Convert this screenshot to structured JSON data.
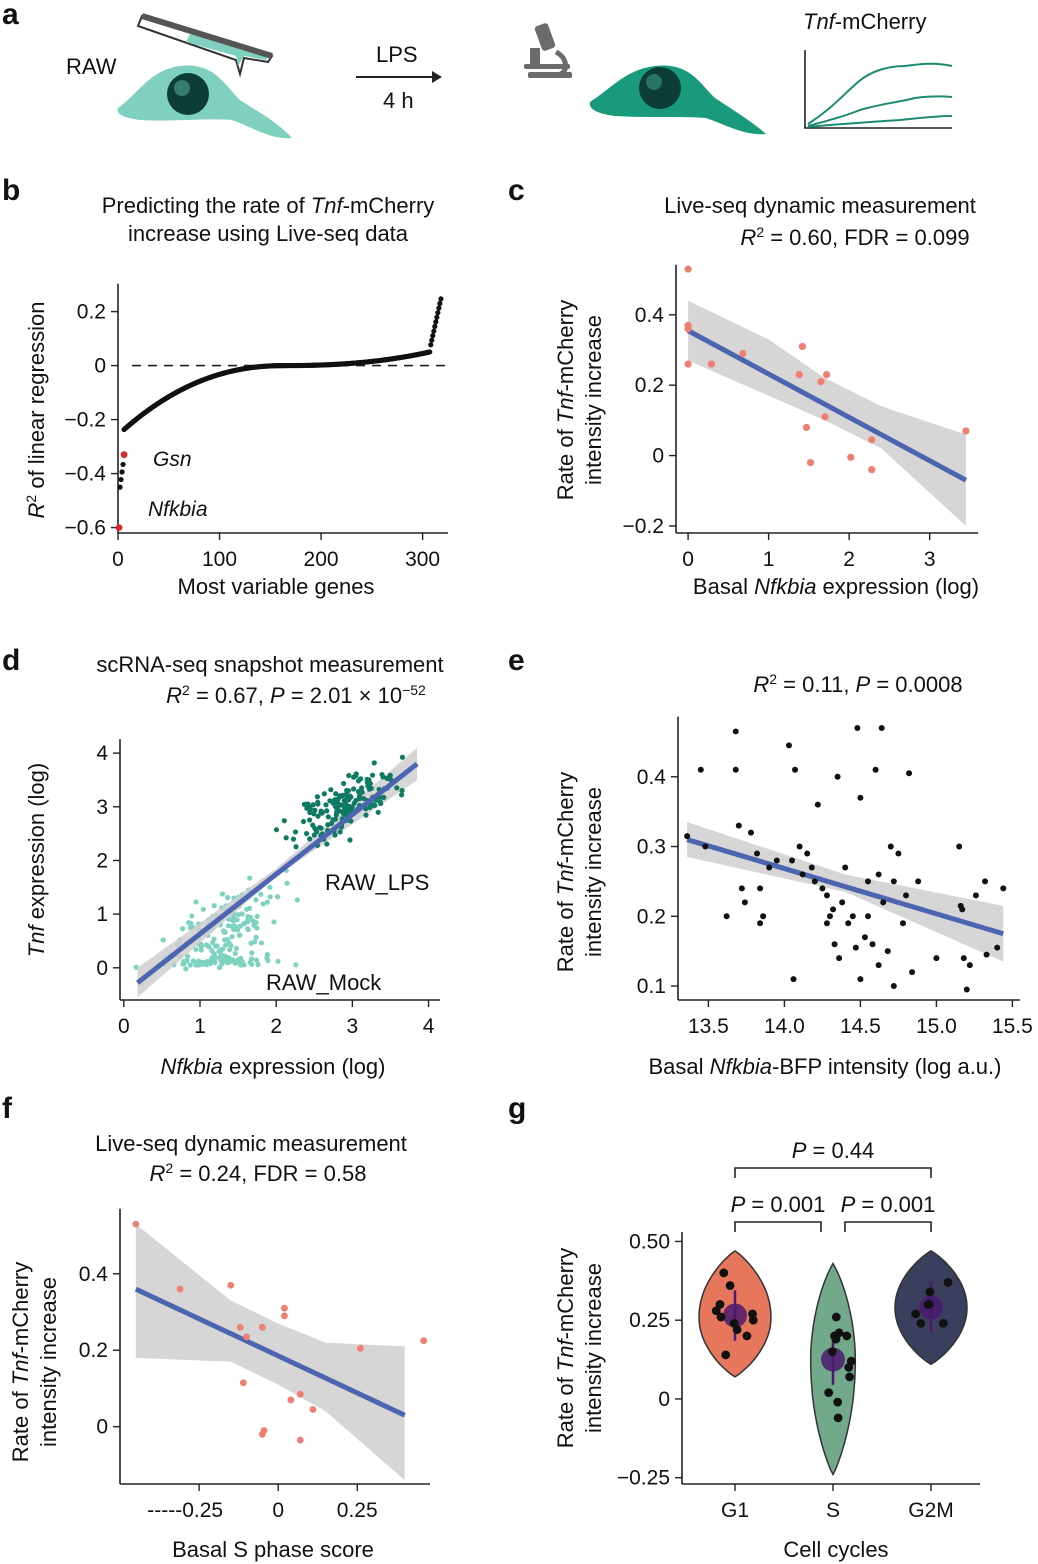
{
  "panel_letters": [
    "a",
    "b",
    "c",
    "d",
    "e",
    "f",
    "g"
  ],
  "schematic": {
    "cell_label": "RAW",
    "treatment": "LPS",
    "duration": "4 h",
    "reporter_label": "Tnf-mCherry",
    "reporter_italic": "Tnf",
    "reporter_rest": "-mCherry",
    "colors": {
      "cell_before": "#7fd0bf",
      "cell_after": "#1a9a7c",
      "trace": "#1d8a72"
    }
  },
  "chart_data": [
    {
      "panel": "b",
      "type": "scatter",
      "title_lines": [
        "Predicting the rate of Tnf-mCherry",
        "increase using Live-seq data"
      ],
      "title_parts": {
        "pre": "Predicting the rate of ",
        "italic": "Tnf",
        "post": "-mCherry",
        "line2": "increase using Live-seq data"
      },
      "xlabel": "Most variable genes",
      "ylabel": "R2 of linear regression",
      "ylabel_parts": {
        "r": "R",
        "sup": "2",
        "rest": " of linear regression"
      },
      "xlim": [
        0,
        325
      ],
      "ylim": [
        -0.62,
        0.28
      ],
      "x_ticks": [
        0,
        100,
        200,
        300
      ],
      "y_ticks": [
        0.2,
        0,
        -0.2,
        -0.4,
        -0.6
      ],
      "x_tick_labels": [
        "0",
        "100",
        "200",
        "300"
      ],
      "y_tick_labels": [
        "0.2",
        "0",
        "−0.2",
        "−0.4",
        "−0.6"
      ],
      "reference_line": {
        "y": 0,
        "style": "dashed"
      },
      "n_genes": 318,
      "curve_shape": "sorted R2, steep drop at low ranks, flat near zero, steep rise at high ranks",
      "highlighted": [
        {
          "label": "Nfkbia",
          "x": 1,
          "y": -0.6
        },
        {
          "label": "Gsn",
          "x": 6,
          "y": -0.33
        }
      ],
      "colors": {
        "points": "#111111",
        "highlight": "#d42a2e"
      }
    },
    {
      "panel": "c",
      "type": "scatter",
      "title": "Live-seq dynamic measurement",
      "stat_parts": {
        "r": "R",
        "sup": "2",
        "text": " = 0.60,  FDR = 0.099"
      },
      "xlabel_parts": {
        "pre": "Basal ",
        "italic": "Nfkbia",
        "post": " expression (log)"
      },
      "ylabel_line1": {
        "pre": "Rate of ",
        "italic": "Tnf",
        "post": "-mCherry"
      },
      "ylabel_line2": "intensity increase",
      "xlim": [
        -0.15,
        3.6
      ],
      "ylim": [
        -0.22,
        0.55
      ],
      "x_ticks": [
        0,
        1,
        2,
        3
      ],
      "y_ticks": [
        0.4,
        0.2,
        0,
        -0.2
      ],
      "x_tick_labels": [
        "0",
        "1",
        "2",
        "3"
      ],
      "y_tick_labels": [
        "0.4",
        "0.2",
        "0",
        "−0.2"
      ],
      "points": [
        {
          "x": 0.0,
          "y": 0.53
        },
        {
          "x": 0.0,
          "y": 0.37
        },
        {
          "x": 0.0,
          "y": 0.36
        },
        {
          "x": 0.0,
          "y": 0.26
        },
        {
          "x": 0.29,
          "y": 0.26
        },
        {
          "x": 0.68,
          "y": 0.29
        },
        {
          "x": 1.42,
          "y": 0.31
        },
        {
          "x": 1.38,
          "y": 0.23
        },
        {
          "x": 1.65,
          "y": 0.21
        },
        {
          "x": 1.72,
          "y": 0.23
        },
        {
          "x": 1.7,
          "y": 0.11
        },
        {
          "x": 1.47,
          "y": 0.08
        },
        {
          "x": 1.52,
          "y": -0.02
        },
        {
          "x": 2.02,
          "y": -0.005
        },
        {
          "x": 2.28,
          "y": 0.045
        },
        {
          "x": 2.28,
          "y": -0.04
        },
        {
          "x": 3.45,
          "y": 0.07
        }
      ],
      "fit": {
        "x": [
          0.0,
          3.45
        ],
        "y": [
          0.355,
          -0.07
        ]
      },
      "ci_band": {
        "x": [
          0.0,
          1.0,
          1.7,
          2.4,
          3.45
        ],
        "lower": [
          0.27,
          0.17,
          0.1,
          0.02,
          -0.2
        ],
        "upper": [
          0.44,
          0.33,
          0.22,
          0.14,
          0.06
        ]
      },
      "colors": {
        "points": "#ee7f72",
        "fit": "#4d65b0",
        "band": "#cfcfcf"
      }
    },
    {
      "panel": "d",
      "type": "scatter",
      "title": "scRNA-seq snapshot measurement",
      "stat_parts": {
        "r": "R",
        "sup": "2",
        "mid": " = 0.67, ",
        "p": "P",
        "eq": " = 2.01 × 10",
        "exp": "−52"
      },
      "xlabel_parts": {
        "italic": "Nfkbia",
        "post": " expression (log)"
      },
      "ylabel_parts": {
        "italic": "Tnf",
        "post": " expression (log)"
      },
      "xlim": [
        -0.05,
        4.15
      ],
      "ylim": [
        -0.6,
        4.3
      ],
      "x_ticks": [
        0,
        1,
        2,
        3,
        4
      ],
      "y_ticks": [
        0,
        1,
        2,
        3,
        4
      ],
      "x_tick_labels": [
        "0",
        "1",
        "2",
        "3",
        "4"
      ],
      "y_tick_labels": [
        "0",
        "1",
        "2",
        "3",
        "4"
      ],
      "groups": [
        {
          "name": "RAW_LPS",
          "color": "#0f7a63",
          "center": [
            2.9,
            3.0
          ],
          "spread": [
            0.55,
            0.55
          ],
          "n": 170
        },
        {
          "name": "RAW_Mock",
          "color": "#7ed2c0",
          "center": [
            1.3,
            0.6
          ],
          "spread": [
            0.6,
            0.45
          ],
          "n": 200
        }
      ],
      "fit": {
        "x": [
          0.18,
          3.85
        ],
        "y": [
          -0.28,
          3.8
        ]
      },
      "ci_band": {
        "x": [
          0.18,
          2.0,
          3.85
        ],
        "lower": [
          -0.55,
          1.7,
          3.5
        ],
        "upper": [
          0.0,
          1.85,
          4.1
        ]
      },
      "colors": {
        "fit": "#4d65b0",
        "band": "#cfcfcf"
      }
    },
    {
      "panel": "e",
      "type": "scatter",
      "stat_parts": {
        "r": "R",
        "sup": "2",
        "mid": " = 0.11, ",
        "p": "P",
        "post": " = 0.0008"
      },
      "xlabel_parts": {
        "pre": "Basal ",
        "italic": "Nfkbia",
        "post": "-BFP intensity (log a.u.)"
      },
      "ylabel_line1": {
        "pre": "Rate of ",
        "italic": "Tnf",
        "post": "-mCherry"
      },
      "ylabel_line2": "intensity increase",
      "xlim": [
        13.3,
        15.55
      ],
      "ylim": [
        0.08,
        0.49
      ],
      "x_ticks": [
        13.5,
        14.0,
        14.5,
        15.0,
        15.5
      ],
      "y_ticks": [
        0.4,
        0.3,
        0.2,
        0.1
      ],
      "x_tick_labels": [
        "13.5",
        "14.0",
        "14.5",
        "15.0",
        "15.5"
      ],
      "y_tick_labels": [
        "0.4",
        "0.3",
        "0.2",
        "0.1"
      ],
      "points": [
        {
          "x": 13.36,
          "y": 0.315
        },
        {
          "x": 13.45,
          "y": 0.41
        },
        {
          "x": 13.48,
          "y": 0.3
        },
        {
          "x": 13.62,
          "y": 0.2
        },
        {
          "x": 13.68,
          "y": 0.465
        },
        {
          "x": 13.68,
          "y": 0.41
        },
        {
          "x": 13.7,
          "y": 0.33
        },
        {
          "x": 13.72,
          "y": 0.24
        },
        {
          "x": 13.74,
          "y": 0.22
        },
        {
          "x": 13.78,
          "y": 0.32
        },
        {
          "x": 13.82,
          "y": 0.29
        },
        {
          "x": 13.84,
          "y": 0.24
        },
        {
          "x": 13.84,
          "y": 0.19
        },
        {
          "x": 13.86,
          "y": 0.2
        },
        {
          "x": 13.9,
          "y": 0.27
        },
        {
          "x": 13.95,
          "y": 0.28
        },
        {
          "x": 14.03,
          "y": 0.445
        },
        {
          "x": 14.05,
          "y": 0.28
        },
        {
          "x": 14.07,
          "y": 0.41
        },
        {
          "x": 14.06,
          "y": 0.11
        },
        {
          "x": 14.1,
          "y": 0.3
        },
        {
          "x": 14.12,
          "y": 0.26
        },
        {
          "x": 14.15,
          "y": 0.29
        },
        {
          "x": 14.18,
          "y": 0.27
        },
        {
          "x": 14.2,
          "y": 0.25
        },
        {
          "x": 14.22,
          "y": 0.36
        },
        {
          "x": 14.25,
          "y": 0.24
        },
        {
          "x": 14.28,
          "y": 0.23
        },
        {
          "x": 14.28,
          "y": 0.19
        },
        {
          "x": 14.3,
          "y": 0.2
        },
        {
          "x": 14.32,
          "y": 0.21
        },
        {
          "x": 14.33,
          "y": 0.16
        },
        {
          "x": 14.35,
          "y": 0.4
        },
        {
          "x": 14.36,
          "y": 0.14
        },
        {
          "x": 14.38,
          "y": 0.22
        },
        {
          "x": 14.4,
          "y": 0.27
        },
        {
          "x": 14.42,
          "y": 0.19
        },
        {
          "x": 14.45,
          "y": 0.2
        },
        {
          "x": 14.47,
          "y": 0.155
        },
        {
          "x": 14.48,
          "y": 0.47
        },
        {
          "x": 14.5,
          "y": 0.37
        },
        {
          "x": 14.5,
          "y": 0.11
        },
        {
          "x": 14.53,
          "y": 0.17
        },
        {
          "x": 14.55,
          "y": 0.25
        },
        {
          "x": 14.55,
          "y": 0.2
        },
        {
          "x": 14.58,
          "y": 0.16
        },
        {
          "x": 14.6,
          "y": 0.41
        },
        {
          "x": 14.62,
          "y": 0.26
        },
        {
          "x": 14.62,
          "y": 0.13
        },
        {
          "x": 14.64,
          "y": 0.47
        },
        {
          "x": 14.65,
          "y": 0.22
        },
        {
          "x": 14.68,
          "y": 0.15
        },
        {
          "x": 14.7,
          "y": 0.3
        },
        {
          "x": 14.72,
          "y": 0.25
        },
        {
          "x": 14.72,
          "y": 0.1
        },
        {
          "x": 14.75,
          "y": 0.29
        },
        {
          "x": 14.78,
          "y": 0.19
        },
        {
          "x": 14.8,
          "y": 0.23
        },
        {
          "x": 14.82,
          "y": 0.405
        },
        {
          "x": 14.84,
          "y": 0.12
        },
        {
          "x": 14.88,
          "y": 0.25
        },
        {
          "x": 15.0,
          "y": 0.14
        },
        {
          "x": 15.15,
          "y": 0.3
        },
        {
          "x": 15.16,
          "y": 0.215
        },
        {
          "x": 15.17,
          "y": 0.21
        },
        {
          "x": 15.18,
          "y": 0.14
        },
        {
          "x": 15.2,
          "y": 0.095
        },
        {
          "x": 15.22,
          "y": 0.13
        },
        {
          "x": 15.26,
          "y": 0.23
        },
        {
          "x": 15.32,
          "y": 0.25
        },
        {
          "x": 15.33,
          "y": 0.145
        },
        {
          "x": 15.4,
          "y": 0.155
        },
        {
          "x": 15.44,
          "y": 0.24
        }
      ],
      "fit": {
        "x": [
          13.36,
          15.44
        ],
        "y": [
          0.31,
          0.175
        ]
      },
      "ci_band": {
        "x": [
          13.36,
          14.4,
          15.44
        ],
        "lower": [
          0.285,
          0.235,
          0.135
        ],
        "upper": [
          0.335,
          0.26,
          0.215
        ]
      },
      "colors": {
        "points": "#111111",
        "fit": "#4d65b0",
        "band": "#cfcfcf"
      }
    },
    {
      "panel": "f",
      "type": "scatter",
      "title": "Live-seq dynamic measurement",
      "stat_parts": {
        "r": "R",
        "sup": "2",
        "text": " = 0.24, FDR = 0.58"
      },
      "xlabel": "Basal S phase score",
      "ylabel_line1": {
        "pre": "Rate of ",
        "italic": "Tnf",
        "post": "-mCherry"
      },
      "ylabel_line2": "intensity increase",
      "xlim": [
        -0.5,
        0.48
      ],
      "ylim": [
        -0.15,
        0.58
      ],
      "x_ticks": [
        -0.25,
        0,
        0.25
      ],
      "y_ticks": [
        0.4,
        0.2,
        0
      ],
      "x_tick_labels": [
        "-----0.25",
        "0",
        "0.25"
      ],
      "y_tick_labels": [
        "0.4",
        "0.2",
        "0"
      ],
      "points": [
        {
          "x": -0.45,
          "y": 0.53
        },
        {
          "x": -0.31,
          "y": 0.36
        },
        {
          "x": -0.15,
          "y": 0.37
        },
        {
          "x": -0.12,
          "y": 0.26
        },
        {
          "x": -0.1,
          "y": 0.235
        },
        {
          "x": -0.05,
          "y": 0.26
        },
        {
          "x": -0.11,
          "y": 0.115
        },
        {
          "x": 0.02,
          "y": 0.31
        },
        {
          "x": 0.02,
          "y": 0.29
        },
        {
          "x": 0.04,
          "y": 0.07
        },
        {
          "x": -0.045,
          "y": -0.01
        },
        {
          "x": -0.05,
          "y": -0.02
        },
        {
          "x": 0.07,
          "y": 0.085
        },
        {
          "x": 0.07,
          "y": -0.035
        },
        {
          "x": 0.11,
          "y": 0.045
        },
        {
          "x": 0.26,
          "y": 0.205
        },
        {
          "x": 0.46,
          "y": 0.225
        }
      ],
      "fit": {
        "x": [
          -0.45,
          0.4
        ],
        "y": [
          0.36,
          0.03
        ]
      },
      "ci_band": {
        "x": [
          -0.45,
          -0.15,
          0.0,
          0.15,
          0.4
        ],
        "lower": [
          0.18,
          0.17,
          0.11,
          0.04,
          -0.14
        ],
        "upper": [
          0.53,
          0.33,
          0.27,
          0.22,
          0.21
        ]
      },
      "colors": {
        "points": "#ee7f72",
        "fit": "#4d65b0",
        "band": "#cfcfcf"
      }
    },
    {
      "panel": "g",
      "type": "violin",
      "xlabel": "Cell cycles",
      "ylabel_line1": {
        "pre": "Rate of ",
        "italic": "Tnf",
        "post": "-mCherry"
      },
      "ylabel_line2": "intensity increase",
      "categories": [
        "G1",
        "S",
        "G2M"
      ],
      "ylim": [
        -0.27,
        0.53
      ],
      "y_ticks": [
        0.5,
        0.25,
        0,
        -0.25
      ],
      "y_tick_labels": [
        "0.50",
        "0.25",
        "0",
        "−0.25"
      ],
      "groups": [
        {
          "name": "G1",
          "color": "#e7775c",
          "min": 0.07,
          "max": 0.47,
          "mode": 0.26,
          "mean": 0.265,
          "points": [
            0.28,
            0.4,
            0.3,
            0.36,
            0.27,
            0.26,
            0.22,
            0.24,
            0.2,
            0.14,
            0.25
          ]
        },
        {
          "name": "S",
          "color": "#71a98a",
          "min": -0.24,
          "max": 0.43,
          "mode": 0.12,
          "mean": 0.125,
          "points": [
            0.26,
            0.21,
            0.2,
            0.2,
            0.19,
            0.15,
            0.12,
            0.1,
            0.07,
            0.02,
            -0.01,
            -0.06
          ]
        },
        {
          "name": "G2M",
          "color": "#3b3f5e",
          "min": 0.11,
          "max": 0.47,
          "mode": 0.29,
          "mean": 0.29,
          "points": [
            0.37,
            0.34,
            0.3,
            0.3,
            0.27,
            0.24,
            0.24
          ]
        }
      ],
      "comparisons": [
        {
          "groups": [
            "G1",
            "G2M"
          ],
          "label_p": "P",
          "label_rest": " = 0.44"
        },
        {
          "groups": [
            "G1",
            "S"
          ],
          "label_p": "P",
          "label_rest": " = 0.001"
        },
        {
          "groups": [
            "S",
            "G2M"
          ],
          "label_p": "P",
          "label_rest": " = 0.001"
        }
      ],
      "colors": {
        "mean_dot": "#4b1a6e",
        "points": "#111111"
      }
    }
  ],
  "group_labels": {
    "lps": "RAW_LPS",
    "mock": "RAW_Mock"
  },
  "highlight_labels": {
    "gsn": "Gsn",
    "nfkbia": "Nfkbia"
  }
}
